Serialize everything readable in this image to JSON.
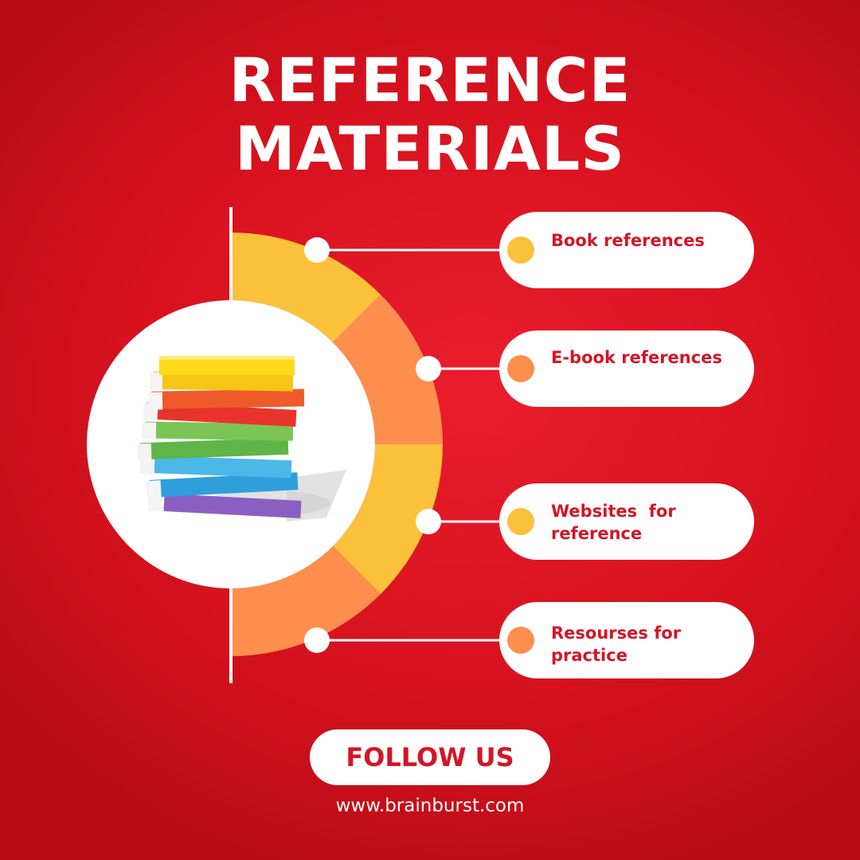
{
  "title": {
    "line1": "REFERENCE",
    "line2": "MATERIALS"
  },
  "items": [
    {
      "label": "Book references",
      "dot_color": "#fbc13b"
    },
    {
      "label": "E-book references",
      "dot_color": "#fd8e4e"
    },
    {
      "label": "Websites  for\nreference",
      "dot_color": "#fbc13b"
    },
    {
      "label": "Resourses for\npractice",
      "dot_color": "#fd8e4e"
    }
  ],
  "colors": {
    "background": "#d8121f",
    "segment_yellow": "#fbc13b",
    "segment_orange": "#fd8e4e",
    "text_red": "#d41526",
    "white": "#ffffff"
  },
  "illustration": "stack-of-colorful-books-icon",
  "footer": {
    "button_label": "FOLLOW US",
    "website": "www.brainburst.com"
  }
}
